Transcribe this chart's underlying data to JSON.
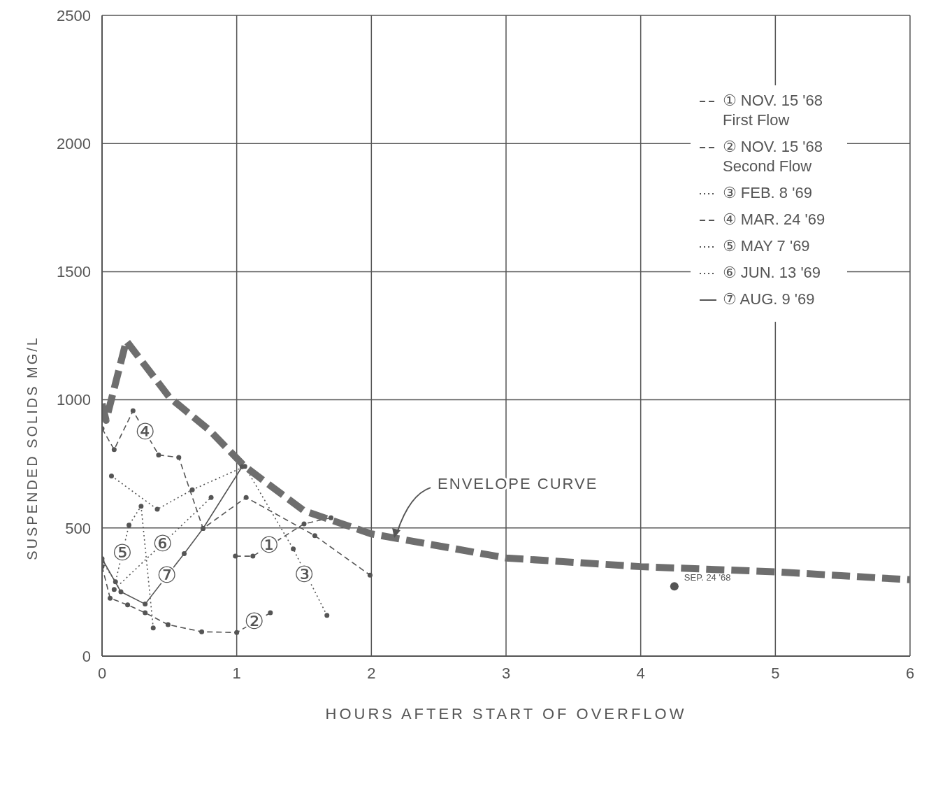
{
  "chart_data": {
    "type": "line",
    "xlabel": "HOURS AFTER START OF OVERFLOW",
    "ylabel": "SUSPENDED SOLIDS MG/L",
    "xlim": [
      0,
      6
    ],
    "xticks": [
      0,
      1,
      2,
      3,
      4,
      5,
      6
    ],
    "ylim": [
      0,
      2500
    ],
    "yticks": [
      0,
      500,
      1000,
      1500,
      2000,
      2500
    ],
    "grid": true,
    "legend": "top right",
    "marker": "circle",
    "series": [
      {
        "name": "① NOV. 15 '68 First Flow",
        "color": "#555555",
        "line_style": "dashed",
        "x": [
          0.99,
          1.12,
          1.5,
          1.7
        ],
        "values": [
          390,
          390,
          516,
          540
        ]
      },
      {
        "name": "② NOV. 15 '68 Second Flow",
        "color": "#555555",
        "line_style": "dashed",
        "x": [
          0,
          0.06,
          0.19,
          0.32,
          0.49,
          0.74,
          1.0,
          1.25
        ],
        "values": [
          350,
          226,
          200,
          169,
          123,
          95,
          92,
          169
        ]
      },
      {
        "name": "③ FEB. 8 '69",
        "color": "#555555",
        "line_style": "dotted",
        "x": [
          0.07,
          0.41,
          0.67,
          1.06,
          1.42,
          1.67
        ],
        "values": [
          703,
          573,
          649,
          740,
          418,
          159
        ]
      },
      {
        "name": "④ MAR. 24 '69",
        "color": "#555555",
        "line_style": "dashed",
        "x": [
          0,
          0.09,
          0.23,
          0.42,
          0.57,
          0.75,
          1.07,
          1.58,
          1.99
        ],
        "values": [
          888,
          806,
          957,
          785,
          775,
          498,
          619,
          470,
          316
        ]
      },
      {
        "name": "⑤ MAY 7 '69",
        "color": "#555555",
        "line_style": "dotted",
        "x": [
          0,
          0.1,
          0.2,
          0.29,
          0.38
        ],
        "values": [
          370,
          290,
          511,
          585,
          110
        ]
      },
      {
        "name": "⑥ JUN. 13 '69",
        "color": "#555555",
        "line_style": "dotted",
        "x": [
          0.09,
          0.81
        ],
        "values": [
          260,
          619
        ]
      },
      {
        "name": "⑦ AUG. 9 '69",
        "color": "#555555",
        "line_style": "solid",
        "x": [
          0,
          0.14,
          0.32,
          0.61,
          0.75,
          1.04
        ],
        "values": [
          380,
          251,
          203,
          400,
          498,
          739
        ]
      },
      {
        "color": "#6e6e6e",
        "line_style": "dashed",
        "marker": "none",
        "x": [
          0,
          0.03,
          0.18,
          0.5,
          0.8,
          1.06,
          1.5,
          2,
          3,
          4,
          5,
          6
        ],
        "values": [
          985,
          920,
          1230,
          1010,
          880,
          740,
          567,
          477,
          383,
          349,
          329,
          298
        ]
      },
      {
        "type": "scatter",
        "name": "SEP. 24 '68",
        "color": "#555555",
        "x": [
          4.25
        ],
        "values": [
          272
        ]
      }
    ],
    "annotations": [
      {
        "text": "①",
        "x": 1.24,
        "y": 434
      },
      {
        "text": "②",
        "x": 1.13,
        "y": 136
      },
      {
        "text": "③",
        "x": 1.5,
        "y": 318
      },
      {
        "text": "④",
        "x": 0.32,
        "y": 875
      },
      {
        "text": "⑤",
        "x": 0.15,
        "y": 405
      },
      {
        "text": "⑥",
        "x": 0.45,
        "y": 440
      },
      {
        "text": "⑦",
        "x": 0.48,
        "y": 316
      },
      {
        "text": "ENVELOPE CURVE",
        "x": 2.17,
        "y": 461
      }
    ]
  }
}
